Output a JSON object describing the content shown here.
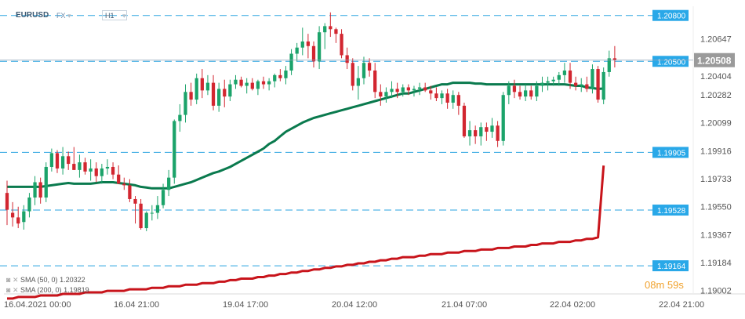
{
  "header": {
    "symbol": "EURUSD",
    "market": "FX",
    "market_caret": "▾",
    "timeframe": "H1",
    "timeframe_caret": "▾"
  },
  "indicators": [
    {
      "name": "SMA (50, 0)",
      "value": "1.20322",
      "color": "#0a7a4e"
    },
    {
      "name": "SMA (200, 0)",
      "value": "1.19819",
      "color": "#c8141b"
    }
  ],
  "countdown": "08m 59s",
  "colors": {
    "bull": "#1ba36a",
    "bear": "#d22630",
    "level_line": "#29a3e0",
    "level_box": "#29a8e8",
    "current_box": "#9a9a9a"
  },
  "chart_data": {
    "type": "candlestick",
    "symbol": "EURUSD",
    "timeframe": "H1",
    "ylim": [
      1.1898,
      1.2086
    ],
    "y_ticks": [
      "1.20647",
      "1.20404",
      "1.20282",
      "1.20099",
      "1.19916",
      "1.19733",
      "1.19550",
      "1.19367",
      "1.19184",
      "1.19002"
    ],
    "x_ticks": [
      "16.04.2021 00:00",
      "16.04 21:00",
      "19.04 17:00",
      "20.04 12:00",
      "21.04 07:00",
      "22.04 02:00",
      "22.04 21:00"
    ],
    "levels": [
      {
        "label": "1.20800",
        "value": 1.208
      },
      {
        "label": "1.20500",
        "value": 1.205
      },
      {
        "label": "1.19905",
        "value": 1.19905
      },
      {
        "label": "1.19528",
        "value": 1.19528
      },
      {
        "label": "1.19164",
        "value": 1.19164
      }
    ],
    "current_price": {
      "label": "1.20508",
      "value": 1.20508
    },
    "candles": [
      [
        1.1964,
        1.1972,
        1.1943,
        1.1953
      ],
      [
        1.1951,
        1.1958,
        1.1942,
        1.1948
      ],
      [
        1.1948,
        1.1955,
        1.1941,
        1.1944
      ],
      [
        1.1945,
        1.1956,
        1.194,
        1.1952
      ],
      [
        1.1952,
        1.1964,
        1.1948,
        1.1961
      ],
      [
        1.1961,
        1.1975,
        1.1956,
        1.1971
      ],
      [
        1.1971,
        1.1974,
        1.1957,
        1.1961
      ],
      [
        1.1961,
        1.1984,
        1.1958,
        1.1981
      ],
      [
        1.1981,
        1.1993,
        1.1978,
        1.199
      ],
      [
        1.199,
        1.1992,
        1.1977,
        1.198
      ],
      [
        1.198,
        1.1994,
        1.1976,
        1.1988
      ],
      [
        1.1988,
        1.1991,
        1.1979,
        1.1983
      ],
      [
        1.1983,
        1.1994,
        1.1979,
        1.1979
      ],
      [
        1.1979,
        1.1989,
        1.1974,
        1.1984
      ],
      [
        1.1984,
        1.1987,
        1.1976,
        1.1978
      ],
      [
        1.1978,
        1.1986,
        1.1972,
        1.198
      ],
      [
        1.198,
        1.1984,
        1.1971,
        1.1975
      ],
      [
        1.1975,
        1.1983,
        1.197,
        1.198
      ],
      [
        1.198,
        1.1986,
        1.1976,
        1.1981
      ],
      [
        1.1981,
        1.1984,
        1.1973,
        1.1976
      ],
      [
        1.1976,
        1.1982,
        1.197,
        1.197
      ],
      [
        1.197,
        1.1974,
        1.1966,
        1.1969
      ],
      [
        1.1969,
        1.1973,
        1.1958,
        1.196
      ],
      [
        1.196,
        1.1962,
        1.1944,
        1.1957
      ],
      [
        1.1957,
        1.196,
        1.194,
        1.1941
      ],
      [
        1.1941,
        1.1952,
        1.1939,
        1.1951
      ],
      [
        1.1951,
        1.1956,
        1.1946,
        1.1951
      ],
      [
        1.1951,
        1.1962,
        1.1947,
        1.1956
      ],
      [
        1.1956,
        1.197,
        1.1954,
        1.1966
      ],
      [
        1.1966,
        1.1979,
        1.1962,
        1.1974
      ],
      [
        1.1974,
        1.2012,
        1.197,
        1.2011
      ],
      [
        1.2011,
        1.2022,
        1.2004,
        1.2015
      ],
      [
        1.2015,
        1.2035,
        1.201,
        1.203
      ],
      [
        1.203,
        1.2036,
        1.2021,
        1.2025
      ],
      [
        1.2025,
        1.2042,
        1.2022,
        1.2039
      ],
      [
        1.2039,
        1.2045,
        1.2026,
        1.2031
      ],
      [
        1.2031,
        1.2041,
        1.2028,
        1.2036
      ],
      [
        1.2036,
        1.2041,
        1.2018,
        1.2021
      ],
      [
        1.2021,
        1.2036,
        1.2017,
        1.2032
      ],
      [
        1.2032,
        1.2038,
        1.202,
        1.2027
      ],
      [
        1.2027,
        1.2038,
        1.2024,
        1.2035
      ],
      [
        1.2035,
        1.2041,
        1.2032,
        1.2038
      ],
      [
        1.2038,
        1.204,
        1.2033,
        1.2034
      ],
      [
        1.2034,
        1.2039,
        1.2029,
        1.2036
      ],
      [
        1.2036,
        1.2039,
        1.2031,
        1.2032
      ],
      [
        1.2032,
        1.2038,
        1.2028,
        1.2037
      ],
      [
        1.2037,
        1.204,
        1.2032,
        1.2035
      ],
      [
        1.2035,
        1.2039,
        1.2031,
        1.2037
      ],
      [
        1.2037,
        1.2042,
        1.2033,
        1.2041
      ],
      [
        1.2041,
        1.2045,
        1.2037,
        1.2039
      ],
      [
        1.2039,
        1.2047,
        1.2035,
        1.2044
      ],
      [
        1.2044,
        1.2058,
        1.2041,
        1.2055
      ],
      [
        1.2055,
        1.2062,
        1.205,
        1.2059
      ],
      [
        1.2059,
        1.2072,
        1.2054,
        1.2063
      ],
      [
        1.2063,
        1.2068,
        1.2052,
        1.206
      ],
      [
        1.206,
        1.2063,
        1.2046,
        1.205
      ],
      [
        1.205,
        1.2073,
        1.2045,
        1.2069
      ],
      [
        1.2069,
        1.2075,
        1.2058,
        1.2073
      ],
      [
        1.2073,
        1.2082,
        1.2066,
        1.2071
      ],
      [
        1.2071,
        1.2072,
        1.2062,
        1.2068
      ],
      [
        1.2068,
        1.2071,
        1.2052,
        1.2054
      ],
      [
        1.2054,
        1.2059,
        1.2045,
        1.2049
      ],
      [
        1.2049,
        1.2052,
        1.2031,
        1.2034
      ],
      [
        1.2034,
        1.2047,
        1.2025,
        1.2039
      ],
      [
        1.2039,
        1.2053,
        1.2035,
        1.2049
      ],
      [
        1.2049,
        1.2052,
        1.204,
        1.2044
      ],
      [
        1.2044,
        1.2049,
        1.2026,
        1.203
      ],
      [
        1.203,
        1.2035,
        1.2021,
        1.2027
      ],
      [
        1.2027,
        1.2033,
        1.2023,
        1.203
      ],
      [
        1.203,
        1.2037,
        1.2026,
        1.2032
      ],
      [
        1.2032,
        1.2036,
        1.2026,
        1.203
      ],
      [
        1.203,
        1.2035,
        1.2027,
        1.2033
      ],
      [
        1.2033,
        1.2035,
        1.2028,
        1.2031
      ],
      [
        1.2031,
        1.2034,
        1.2027,
        1.2032
      ],
      [
        1.2032,
        1.2036,
        1.2028,
        1.2033
      ],
      [
        1.2033,
        1.2036,
        1.203,
        1.2031
      ],
      [
        1.2031,
        1.2034,
        1.2025,
        1.2029
      ],
      [
        1.2029,
        1.2033,
        1.2024,
        1.2026
      ],
      [
        1.2026,
        1.2031,
        1.2022,
        1.2029
      ],
      [
        1.2029,
        1.2032,
        1.2019,
        1.2023
      ],
      [
        1.2023,
        1.2031,
        1.2019,
        1.2028
      ],
      [
        1.2028,
        1.203,
        1.2015,
        1.2021
      ],
      [
        1.2021,
        1.2023,
        1.2,
        1.2001
      ],
      [
        1.2001,
        1.2011,
        1.1995,
        1.2005
      ],
      [
        1.2005,
        1.2008,
        1.1996,
        1.2001
      ],
      [
        1.2001,
        1.201,
        1.1995,
        1.2007
      ],
      [
        1.2007,
        1.201,
        1.1998,
        1.2004
      ],
      [
        1.2004,
        1.2013,
        1.2,
        1.2008
      ],
      [
        1.2008,
        1.2011,
        1.1994,
        1.1998
      ],
      [
        1.1998,
        1.203,
        1.1995,
        1.2028
      ],
      [
        1.2028,
        1.2037,
        1.2022,
        1.2034
      ],
      [
        1.2034,
        1.2038,
        1.2026,
        1.203
      ],
      [
        1.203,
        1.2034,
        1.2025,
        1.2027
      ],
      [
        1.2027,
        1.2035,
        1.2024,
        1.2031
      ],
      [
        1.2031,
        1.2034,
        1.2025,
        1.2027
      ],
      [
        1.2027,
        1.2037,
        1.2024,
        1.2034
      ],
      [
        1.2034,
        1.204,
        1.203,
        1.2036
      ],
      [
        1.2036,
        1.204,
        1.2031,
        1.2037
      ],
      [
        1.2037,
        1.204,
        1.2034,
        1.2038
      ],
      [
        1.2038,
        1.2043,
        1.2034,
        1.2041
      ],
      [
        1.2041,
        1.2049,
        1.2036,
        1.2044
      ],
      [
        1.2044,
        1.2049,
        1.2032,
        1.2036
      ],
      [
        1.2036,
        1.204,
        1.2031,
        1.2034
      ],
      [
        1.2034,
        1.2039,
        1.203,
        1.2035
      ],
      [
        1.2035,
        1.204,
        1.203,
        1.2032
      ],
      [
        1.2032,
        1.2048,
        1.2029,
        1.2045
      ],
      [
        1.2045,
        1.2047,
        1.2023,
        1.2025
      ],
      [
        1.2025,
        1.2046,
        1.2022,
        1.2043
      ],
      [
        1.2043,
        1.2057,
        1.204,
        1.2052
      ],
      [
        1.2052,
        1.206,
        1.2046,
        1.2051
      ]
    ],
    "series": [
      {
        "name": "SMA (50, 0)",
        "values": [
          1.1968,
          1.1968,
          1.1968,
          1.1968,
          1.1968,
          1.1968,
          1.1968,
          1.19685,
          1.1969,
          1.19695,
          1.197,
          1.19705,
          1.197,
          1.197,
          1.197,
          1.197,
          1.19705,
          1.1971,
          1.1971,
          1.1971,
          1.19705,
          1.197,
          1.19695,
          1.1969,
          1.1968,
          1.19675,
          1.1967,
          1.1967,
          1.1967,
          1.1967,
          1.1968,
          1.1969,
          1.197,
          1.1971,
          1.19725,
          1.1974,
          1.19755,
          1.1977,
          1.1978,
          1.19795,
          1.1981,
          1.1983,
          1.1985,
          1.1987,
          1.1989,
          1.1991,
          1.1993,
          1.1996,
          1.1998,
          1.2001,
          1.2004,
          1.2006,
          1.2008,
          1.201,
          1.20115,
          1.2013,
          1.2014,
          1.2015,
          1.2016,
          1.2017,
          1.2018,
          1.2019,
          1.202,
          1.2021,
          1.2022,
          1.2023,
          1.2024,
          1.2025,
          1.2026,
          1.2027,
          1.2028,
          1.2029,
          1.2029,
          1.203,
          1.2031,
          1.2032,
          1.2033,
          1.2034,
          1.2035,
          1.2035,
          1.2036,
          1.2036,
          1.2036,
          1.2036,
          1.20355,
          1.20355,
          1.2035,
          1.2035,
          1.2035,
          1.2035,
          1.2035,
          1.2035,
          1.2035,
          1.2035,
          1.2035,
          1.2035,
          1.2035,
          1.2035,
          1.2035,
          1.2035,
          1.2035,
          1.20345,
          1.2034,
          1.2034,
          1.2033,
          1.20325,
          1.2032,
          1.20322
        ]
      },
      {
        "name": "SMA (200, 0)",
        "values": [
          1.1895,
          1.1895,
          1.1896,
          1.1896,
          1.1896,
          1.1896,
          1.1897,
          1.1897,
          1.1897,
          1.1897,
          1.1898,
          1.1898,
          1.1898,
          1.1898,
          1.1899,
          1.1899,
          1.1899,
          1.1899,
          1.19,
          1.19,
          1.19,
          1.19,
          1.1901,
          1.1901,
          1.1901,
          1.1901,
          1.1902,
          1.1902,
          1.1902,
          1.1903,
          1.1903,
          1.1903,
          1.1904,
          1.1904,
          1.1904,
          1.1905,
          1.1905,
          1.1905,
          1.1906,
          1.1906,
          1.1907,
          1.1907,
          1.1908,
          1.1908,
          1.1908,
          1.1909,
          1.1909,
          1.191,
          1.191,
          1.1911,
          1.1911,
          1.1912,
          1.1912,
          1.1913,
          1.1913,
          1.1914,
          1.1914,
          1.1915,
          1.1915,
          1.1916,
          1.1916,
          1.1917,
          1.1917,
          1.1918,
          1.1918,
          1.1919,
          1.1919,
          1.192,
          1.192,
          1.1921,
          1.1921,
          1.1922,
          1.1922,
          1.1922,
          1.1923,
          1.1923,
          1.1924,
          1.1924,
          1.1924,
          1.1925,
          1.1925,
          1.1925,
          1.1926,
          1.1926,
          1.1926,
          1.1927,
          1.1927,
          1.1927,
          1.1928,
          1.1928,
          1.1928,
          1.1929,
          1.1929,
          1.1929,
          1.193,
          1.193,
          1.1931,
          1.1931,
          1.1931,
          1.1932,
          1.1932,
          1.1932,
          1.1933,
          1.1933,
          1.1934,
          1.1934,
          1.1935,
          1.19819
        ]
      }
    ]
  }
}
